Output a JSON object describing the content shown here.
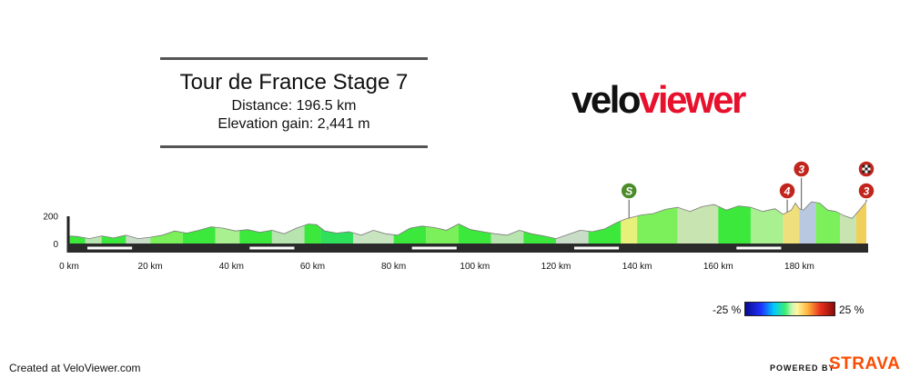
{
  "header": {
    "title": "Tour de France Stage 7",
    "distance": "Distance: 196.5 km",
    "elevation": "Elevation gain: 2,441 m"
  },
  "logo": {
    "part1": "velo",
    "part2": "viewer"
  },
  "legend": {
    "min": "-25 %",
    "max": "25 %"
  },
  "footer": {
    "created": "Created at VeloViewer.com",
    "powered": "POWERED BY",
    "brand": "STRAVA"
  },
  "colors": {
    "brand_red": "#e8112d",
    "strava_orange": "#fc4c02",
    "sprint_green": "#4c8c2a",
    "climb_red": "#c0261e"
  },
  "chart_data": {
    "type": "area",
    "x_unit": "km",
    "y_unit": "m",
    "xlim": [
      0,
      196.5
    ],
    "ylim": [
      0,
      300
    ],
    "x_ticks": [
      0,
      20,
      40,
      60,
      80,
      100,
      120,
      140,
      160,
      180
    ],
    "x_tick_labels": [
      "0 km",
      "20 km",
      "40 km",
      "60 km",
      "80 km",
      "100 km",
      "120 km",
      "140 km",
      "160 km",
      "180 km"
    ],
    "y_ticks": [
      0,
      200
    ],
    "y_tick_labels": [
      "0",
      "200"
    ],
    "elevation_profile": {
      "x": [
        0,
        2,
        5,
        8,
        11,
        14,
        17,
        20,
        23,
        26,
        29,
        32,
        35,
        38,
        41,
        44,
        47,
        50,
        53,
        56,
        59,
        61,
        63,
        66,
        69,
        72,
        75,
        78,
        81,
        84,
        87,
        90,
        93,
        96,
        99,
        102,
        105,
        108,
        111,
        114,
        117,
        120,
        123,
        126,
        129,
        132,
        135,
        137,
        139,
        141,
        144,
        147,
        150,
        153,
        156,
        159,
        162,
        165,
        168,
        171,
        174,
        176,
        178,
        179,
        180,
        181,
        183,
        185,
        187,
        189,
        191,
        193,
        194.5,
        196.5
      ],
      "y": [
        55,
        50,
        35,
        55,
        40,
        60,
        35,
        45,
        60,
        90,
        75,
        95,
        120,
        110,
        90,
        100,
        80,
        95,
        70,
        110,
        140,
        135,
        90,
        75,
        85,
        60,
        95,
        70,
        60,
        110,
        125,
        115,
        95,
        140,
        100,
        85,
        70,
        60,
        95,
        70,
        55,
        35,
        65,
        95,
        85,
        105,
        150,
        175,
        190,
        205,
        215,
        245,
        260,
        230,
        265,
        280,
        240,
        270,
        260,
        230,
        250,
        210,
        240,
        290,
        250,
        240,
        300,
        290,
        240,
        230,
        200,
        180,
        230,
        300
      ]
    },
    "gradient_segments": [
      {
        "from": 0,
        "to": 4,
        "color": "#3ce83c"
      },
      {
        "from": 4,
        "to": 8,
        "color": "#b8e4b0"
      },
      {
        "from": 8,
        "to": 14,
        "color": "#3ce83c"
      },
      {
        "from": 14,
        "to": 20,
        "color": "#c8dcc8"
      },
      {
        "from": 20,
        "to": 28,
        "color": "#7cf05a"
      },
      {
        "from": 28,
        "to": 36,
        "color": "#3ce83c"
      },
      {
        "from": 36,
        "to": 42,
        "color": "#a8f090"
      },
      {
        "from": 42,
        "to": 50,
        "color": "#3ce83c"
      },
      {
        "from": 50,
        "to": 58,
        "color": "#b8e4b0"
      },
      {
        "from": 58,
        "to": 62,
        "color": "#3ce83c"
      },
      {
        "from": 62,
        "to": 70,
        "color": "#2ee05a"
      },
      {
        "from": 70,
        "to": 80,
        "color": "#c8e4c0"
      },
      {
        "from": 80,
        "to": 88,
        "color": "#3ce83c"
      },
      {
        "from": 88,
        "to": 96,
        "color": "#7cf05a"
      },
      {
        "from": 96,
        "to": 104,
        "color": "#3ce83c"
      },
      {
        "from": 104,
        "to": 112,
        "color": "#b8e4b0"
      },
      {
        "from": 112,
        "to": 120,
        "color": "#3ce83c"
      },
      {
        "from": 120,
        "to": 128,
        "color": "#c8dcc8"
      },
      {
        "from": 128,
        "to": 136,
        "color": "#3ce83c"
      },
      {
        "from": 136,
        "to": 140,
        "color": "#e8f07c"
      },
      {
        "from": 140,
        "to": 150,
        "color": "#7cf05a"
      },
      {
        "from": 150,
        "to": 160,
        "color": "#c8e4b0"
      },
      {
        "from": 160,
        "to": 168,
        "color": "#3ce83c"
      },
      {
        "from": 168,
        "to": 176,
        "color": "#a8f090"
      },
      {
        "from": 176,
        "to": 180,
        "color": "#f0e07c"
      },
      {
        "from": 180,
        "to": 184,
        "color": "#b8c8e0"
      },
      {
        "from": 184,
        "to": 190,
        "color": "#7cf05a"
      },
      {
        "from": 190,
        "to": 194,
        "color": "#c8e4b0"
      },
      {
        "from": 194,
        "to": 196.5,
        "color": "#f0d05a"
      }
    ],
    "markers": [
      {
        "name": "sprint",
        "km": 138,
        "label": "S",
        "kind": "sprint"
      },
      {
        "name": "climb-cat4",
        "km": 177,
        "label": "4",
        "kind": "climb"
      },
      {
        "name": "climb-cat3",
        "km": 180.5,
        "label": "3",
        "kind": "climb"
      },
      {
        "name": "finish-climb-cat3",
        "km": 196.5,
        "label": "3",
        "kind": "climb"
      }
    ]
  }
}
